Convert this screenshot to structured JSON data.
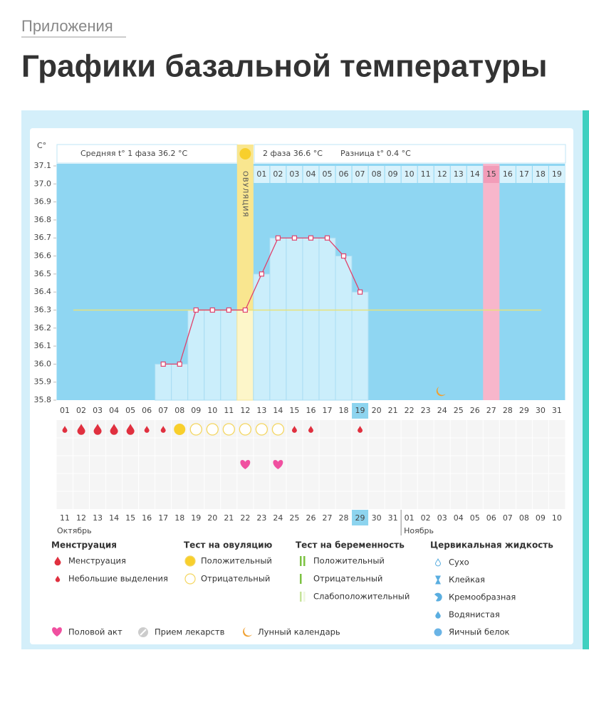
{
  "header": {
    "section": "Приложения",
    "title": "Графики базальной температуры"
  },
  "chart_data": {
    "type": "line",
    "y_label": "C°",
    "phase1_label": "Средняя t° 1 фаза 36.2 °С",
    "phase2_label": "2 фаза 36.6 °С",
    "difference_label": "Разница t° 0.4 °С",
    "ovulation_label": "ОВУЛЯЦИЯ",
    "categories": [
      "01",
      "02",
      "03",
      "04",
      "05",
      "06",
      "07",
      "08",
      "09",
      "10",
      "11",
      "12",
      "13",
      "14",
      "15",
      "16",
      "17",
      "18",
      "19",
      "20",
      "21",
      "22",
      "23",
      "24",
      "25",
      "26",
      "27",
      "28",
      "29",
      "30",
      "31"
    ],
    "values": [
      null,
      null,
      null,
      null,
      null,
      null,
      36,
      36,
      36.3,
      36.3,
      36.3,
      36.3,
      36.5,
      36.7,
      36.7,
      36.7,
      36.7,
      36.6,
      36.4,
      null,
      null,
      null,
      null,
      null,
      null,
      null,
      null,
      null,
      null,
      null,
      null
    ],
    "color": "#e0416b",
    "coverline": 36.3,
    "ylim": [
      35.8,
      37.1
    ],
    "yticks": [
      35.8,
      35.9,
      {
        "value": 36,
        "label": "36.0"
      },
      36.1,
      36.2,
      36.3,
      36.4,
      36.5,
      36.6,
      36.7,
      36.8,
      36.9,
      {
        "value": 37,
        "label": "37.0"
      },
      37.1
    ],
    "next_cycle_days": [
      "01",
      "02",
      "03",
      "04",
      "05",
      "06",
      "07",
      "08",
      "09",
      "10",
      "11",
      "12",
      "13",
      "14",
      "15",
      "16",
      "17",
      "18",
      "19"
    ],
    "dates": [
      "11",
      "12",
      "13",
      "14",
      "15",
      "16",
      "17",
      "18",
      "19",
      "20",
      "21",
      "22",
      "23",
      "24",
      "25",
      "26",
      "27",
      "28",
      "29",
      "30",
      "31",
      "01",
      "02",
      "03",
      "04",
      "05",
      "06",
      "07",
      "08",
      "09",
      "10"
    ],
    "date_colors": [
      "#555",
      "#555",
      "#555",
      "#555",
      "#555",
      "#e0416b",
      "#e0416b",
      "#555",
      "#555",
      "#555",
      "#555",
      "#555",
      "#e0416b",
      "#e0416b",
      "#555",
      "#555",
      "#555",
      "#555",
      "#555",
      "#e0416b",
      "#e0416b",
      "#555",
      "#555",
      "#555",
      "#555",
      "#555",
      "#e0416b",
      "#e0416b",
      "#555",
      "#555",
      "#555"
    ],
    "months": [
      "Октябрь",
      "Ноябрь"
    ]
  },
  "legend": {
    "groups": [
      {
        "title": "Менструация",
        "items": [
          "Менструация",
          "Небольшие выделения"
        ]
      },
      {
        "title": "Тест на овуляцию",
        "items": [
          "Положительный",
          "Отрицательный"
        ]
      },
      {
        "title": "Тест на беременность",
        "items": [
          "Положительный",
          "Отрицательный",
          "Слабоположительный"
        ]
      },
      {
        "title": "Цервикальная жидкость",
        "items": [
          "Сухо",
          "Клейкая",
          "Кремообразная",
          "Водянистая",
          "Яичный белок"
        ]
      }
    ],
    "extra": [
      "Половой акт",
      "Прием лекарств",
      "Лунный календарь"
    ]
  }
}
